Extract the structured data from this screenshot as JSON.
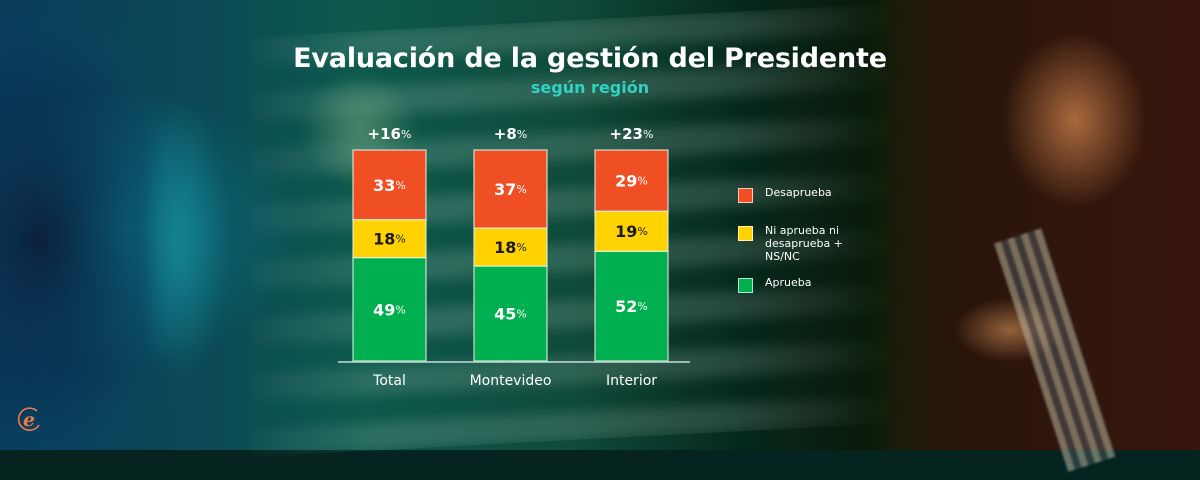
{
  "header": {
    "title": "Evaluación de la gestión del Presidente",
    "subtitle": "según región"
  },
  "colors": {
    "desaprueba": "#f04e23",
    "neutral": "#ffd200",
    "aprueba": "#00b050",
    "subtitle": "#2fd3c4",
    "logo": "#f07a4a"
  },
  "chart_data": {
    "type": "bar",
    "stacked": true,
    "title": "Evaluación de la gestión del Presidente",
    "subtitle": "según región",
    "categories": [
      "Total",
      "Montevideo",
      "Interior"
    ],
    "series": [
      {
        "name": "Aprueba",
        "key": "aprueba",
        "values": [
          49,
          45,
          52
        ]
      },
      {
        "name": "Ni aprueba ni desaprueba + NS/NC",
        "key": "neutral",
        "values": [
          18,
          18,
          19
        ]
      },
      {
        "name": "Desaprueba",
        "key": "desaprueba",
        "values": [
          33,
          37,
          29
        ]
      }
    ],
    "net_labels": [
      "+16%",
      "+8%",
      "+23%"
    ],
    "value_suffix": "%",
    "xlabel": "",
    "ylabel": "",
    "ylim": [
      0,
      100
    ],
    "grid": false,
    "legend": {
      "position": "right",
      "entries": [
        "Desaprueba",
        "Ni aprueba ni desaprueba + NS/NC",
        "Aprueba"
      ]
    }
  },
  "legend": {
    "items": [
      {
        "label": "Desaprueba",
        "key": "desaprueba"
      },
      {
        "label": "Ni aprueba ni desaprueba + NS/NC",
        "key": "neutral"
      },
      {
        "label": "Aprueba",
        "key": "aprueba"
      }
    ]
  },
  "branding": {
    "logo_icon": "e-logo-icon",
    "logo_glyph": "e"
  }
}
